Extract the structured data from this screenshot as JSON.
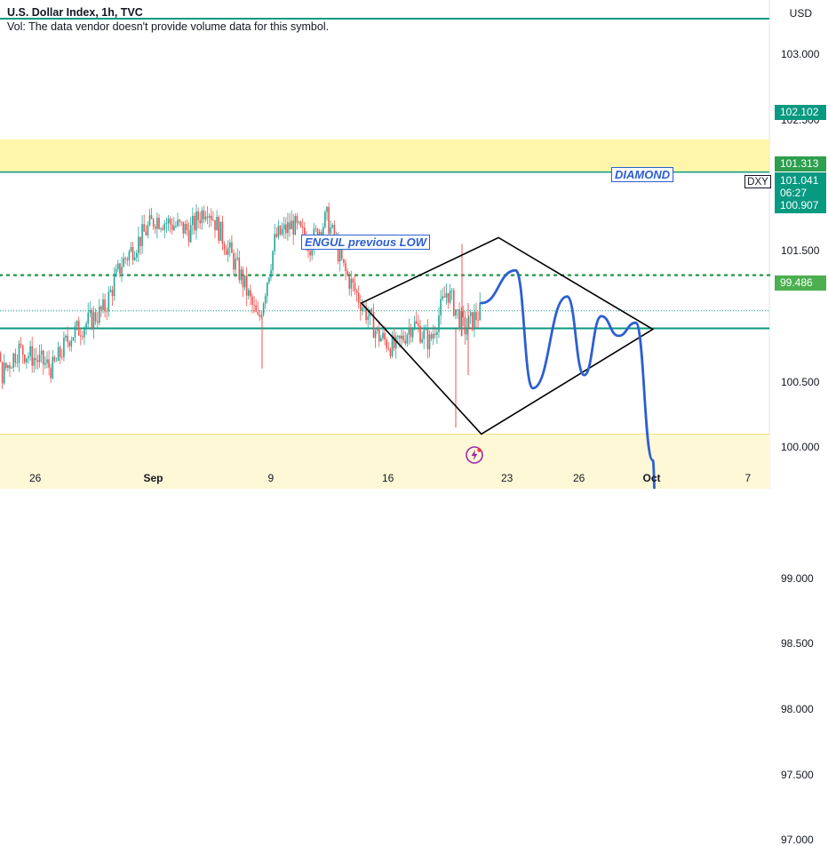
{
  "legend": {
    "title": "U.S. Dollar Index, 1h, TVC",
    "volume_note": "Vol: The data vendor doesn't provide volume data for this symbol."
  },
  "currency": "USD",
  "ticker": "DXY",
  "price_tags": {
    "upper_band": "102.102",
    "dotted_level": "101.313",
    "current_price": "101.041",
    "countdown": "06:27",
    "support_line": "100.907",
    "green_target": "99.486"
  },
  "annotations": {
    "diamond": "DIAMOND",
    "engul": "ENGUL previous LOW"
  },
  "colors": {
    "up": "#26a69a",
    "down": "#ef5350",
    "teal_line": "#089981",
    "yellow_zone": "#fff59d",
    "green_line": "#4caf50",
    "dotted_green": "#2e9e4f",
    "projection_blue": "#2c5fd1"
  },
  "chart_data": {
    "type": "candlestick",
    "symbol": "U.S. Dollar Index",
    "interval": "1h",
    "ylim": [
      96.8,
      103.6
    ],
    "y_ticks": [
      "103.000",
      "102.500",
      "101.500",
      "100.500",
      "100.000",
      "99.000",
      "98.500",
      "98.000",
      "97.500",
      "97.000"
    ],
    "x_ticks": [
      "26",
      "Sep",
      "9",
      "16",
      "23",
      "26",
      "Oct",
      "7"
    ],
    "close_path": [
      {
        "x": "Aug 22",
        "y": 101.35
      },
      {
        "x": "Aug 23",
        "y": 101.45
      },
      {
        "x": "Aug 24",
        "y": 100.55
      },
      {
        "x": "Aug 25",
        "y": 100.75
      },
      {
        "x": "Aug 27",
        "y": 100.6
      },
      {
        "x": "Aug 28",
        "y": 100.85
      },
      {
        "x": "Aug 30",
        "y": 101.05
      },
      {
        "x": "Aug 31",
        "y": 101.4
      },
      {
        "x": "Sep 2",
        "y": 101.75
      },
      {
        "x": "Sep 4",
        "y": 101.65
      },
      {
        "x": "Sep 5",
        "y": 101.85
      },
      {
        "x": "Sep 7",
        "y": 101.3
      },
      {
        "x": "Sep 8",
        "y": 100.95
      },
      {
        "x": "Sep 9",
        "y": 101.6
      },
      {
        "x": "Sep 10",
        "y": 101.7
      },
      {
        "x": "Sep 11",
        "y": 101.55
      },
      {
        "x": "Sep 12",
        "y": 101.75
      },
      {
        "x": "Sep 13",
        "y": 101.35
      },
      {
        "x": "Sep 14",
        "y": 101.1
      },
      {
        "x": "Sep 15",
        "y": 100.85
      },
      {
        "x": "Sep 16",
        "y": 100.75
      },
      {
        "x": "Sep 17",
        "y": 100.95
      },
      {
        "x": "Sep 18",
        "y": 100.8
      },
      {
        "x": "Sep 19",
        "y": 101.2
      },
      {
        "x": "Sep 20",
        "y": 100.9
      },
      {
        "x": "Sep 21",
        "y": 101.041
      }
    ],
    "levels": {
      "resistance_zone_upper": [
        102.1,
        102.35
      ],
      "dotted_resistance": 101.313,
      "support_line": 100.907,
      "support_zone": [
        99.05,
        100.1
      ],
      "support_zone_lower_band": [
        99.05,
        99.2
      ],
      "target_line": 99.486
    },
    "patterns": {
      "diamond_vertices": [
        {
          "x": "Sep 14",
          "y": 101.1
        },
        {
          "x": "Sep 22",
          "y": 101.6
        },
        {
          "x": "Oct 1",
          "y": 100.9
        },
        {
          "x": "Sep 21",
          "y": 100.1
        }
      ]
    },
    "projection_path": [
      {
        "x": "Sep 21",
        "y": 101.1
      },
      {
        "x": "Sep 23",
        "y": 101.35
      },
      {
        "x": "Sep 24",
        "y": 100.45
      },
      {
        "x": "Sep 26",
        "y": 101.15
      },
      {
        "x": "Sep 27",
        "y": 100.55
      },
      {
        "x": "Sep 28",
        "y": 101.0
      },
      {
        "x": "Sep 29",
        "y": 100.85
      },
      {
        "x": "Sep 30",
        "y": 100.95
      },
      {
        "x": "Oct 1",
        "y": 99.9
      },
      {
        "x": "Oct 1",
        "y": 99.25
      },
      {
        "x": "Oct 2",
        "y": 99.1
      },
      {
        "x": "Oct 2",
        "y": 99.4
      }
    ]
  }
}
